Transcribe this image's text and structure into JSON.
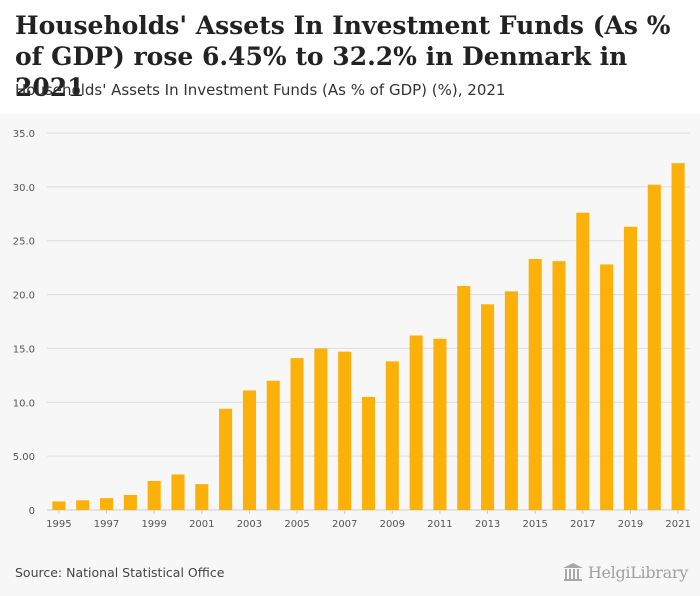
{
  "header": {
    "title": "Households' Assets In Investment Funds (As % of GDP) rose 6.45% to 32.2% in Denmark in 2021",
    "subtitle": "Households' Assets In Investment Funds (As % of GDP) (%), 2021"
  },
  "footer": {
    "source": "Source: National Statistical Office",
    "brand": "HelgiLibrary"
  },
  "colors": {
    "bar": "#fbb10a",
    "grid": "#dddddd",
    "axis_text": "#555555",
    "background": "#f7f7f7"
  },
  "chart_data": {
    "type": "bar",
    "title": "Households' Assets In Investment Funds (As % of GDP) (%), 2021",
    "xlabel": "",
    "ylabel": "",
    "ylim": [
      0,
      35
    ],
    "y_ticks": [
      "0",
      "5.00",
      "10.0",
      "15.0",
      "20.0",
      "25.0",
      "30.0",
      "35.0"
    ],
    "y_tick_values": [
      0,
      5,
      10,
      15,
      20,
      25,
      30,
      35
    ],
    "categories": [
      "1995",
      "1996",
      "1997",
      "1998",
      "1999",
      "2000",
      "2001",
      "2002",
      "2003",
      "2004",
      "2005",
      "2006",
      "2007",
      "2008",
      "2009",
      "2010",
      "2011",
      "2012",
      "2013",
      "2014",
      "2015",
      "2016",
      "2017",
      "2018",
      "2019",
      "2020",
      "2021"
    ],
    "x_tick_labels": [
      "1995",
      "",
      "1997",
      "",
      "1999",
      "",
      "2001",
      "",
      "2003",
      "",
      "2005",
      "",
      "2007",
      "",
      "2009",
      "",
      "2011",
      "",
      "2013",
      "",
      "2015",
      "",
      "2017",
      "",
      "2019",
      "",
      "2021"
    ],
    "values": [
      0.8,
      0.9,
      1.1,
      1.4,
      2.7,
      3.3,
      2.4,
      9.4,
      11.1,
      12.0,
      14.1,
      15.0,
      14.7,
      10.5,
      13.8,
      16.2,
      15.9,
      20.8,
      19.1,
      20.3,
      23.3,
      23.1,
      27.6,
      22.8,
      26.3,
      30.2,
      32.2
    ],
    "grid": true,
    "legend": "none"
  }
}
